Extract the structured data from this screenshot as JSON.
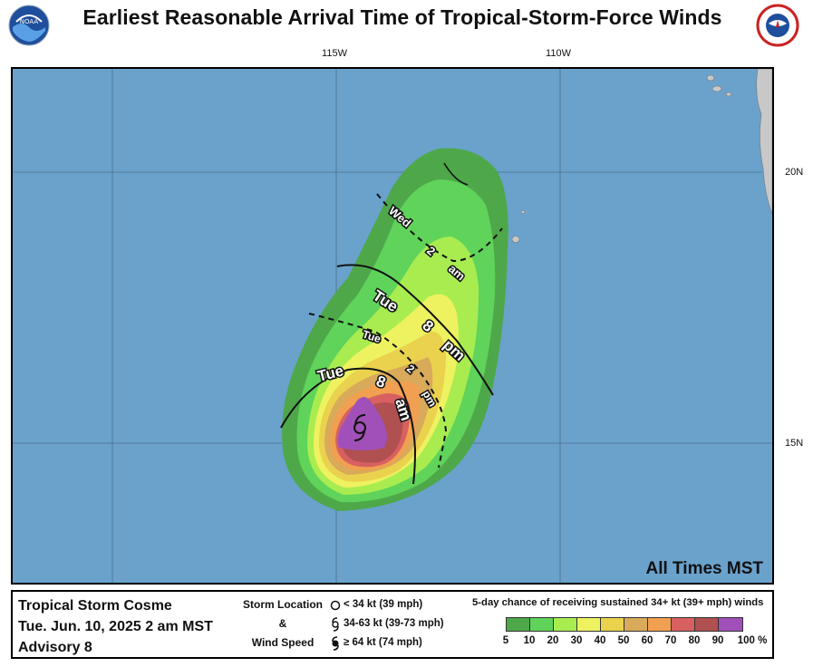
{
  "title": "Earliest Reasonable Arrival Time of Tropical-Storm-Force Winds",
  "logos": {
    "left": {
      "name": "noaa-logo",
      "text": "NOAA"
    },
    "right": {
      "name": "national-weather-service-logo",
      "text": "NATIONAL WEATHER SERVICE"
    }
  },
  "graticule": {
    "longitudes": [
      "115W",
      "110W"
    ],
    "latitudes": [
      "20N",
      "15N"
    ]
  },
  "map": {
    "timezone_note": "All Times MST",
    "ocean_color": "#6aa2cc",
    "land_color": "#c8c8c8",
    "arrival_time_labels": [
      {
        "id": "wed-2am",
        "words": [
          "Wed",
          "2",
          "am"
        ],
        "style": "dashed"
      },
      {
        "id": "tue-8pm",
        "words": [
          "Tue",
          "8",
          "pm"
        ],
        "style": "solid"
      },
      {
        "id": "tue-2pm",
        "words": [
          "Tue",
          "2",
          "pm"
        ],
        "style": "dashed"
      },
      {
        "id": "tue-8am",
        "words": [
          "Tue",
          "8",
          "am"
        ],
        "style": "solid"
      }
    ]
  },
  "storm_info": {
    "name": "Tropical Storm Cosme",
    "datetime": "Tue. Jun. 10, 2025  2 am MST",
    "advisory": "Advisory 8"
  },
  "key": {
    "storm_location": "Storm Location",
    "and": "&",
    "wind_speed": "Wind Speed",
    "rows": [
      {
        "icon": "open-circle-icon",
        "label": "< 34 kt (39 mph)"
      },
      {
        "icon": "tropical-storm-symbol-icon",
        "label": "34-63 kt (39-73 mph)"
      },
      {
        "icon": "hurricane-symbol-icon",
        "label": "≥ 64 kt (74 mph)"
      }
    ]
  },
  "legend": {
    "title": "5-day chance of receiving sustained 34+ kt (39+ mph) winds",
    "colors": [
      "#4ea84a",
      "#5fd35a",
      "#a8ec50",
      "#eef260",
      "#ead24e",
      "#d8aa5a",
      "#f0a050",
      "#d86060",
      "#b05050",
      "#a050b8"
    ],
    "ticks": [
      "5",
      "10",
      "20",
      "30",
      "40",
      "50",
      "60",
      "70",
      "80",
      "90",
      "100 %"
    ]
  }
}
